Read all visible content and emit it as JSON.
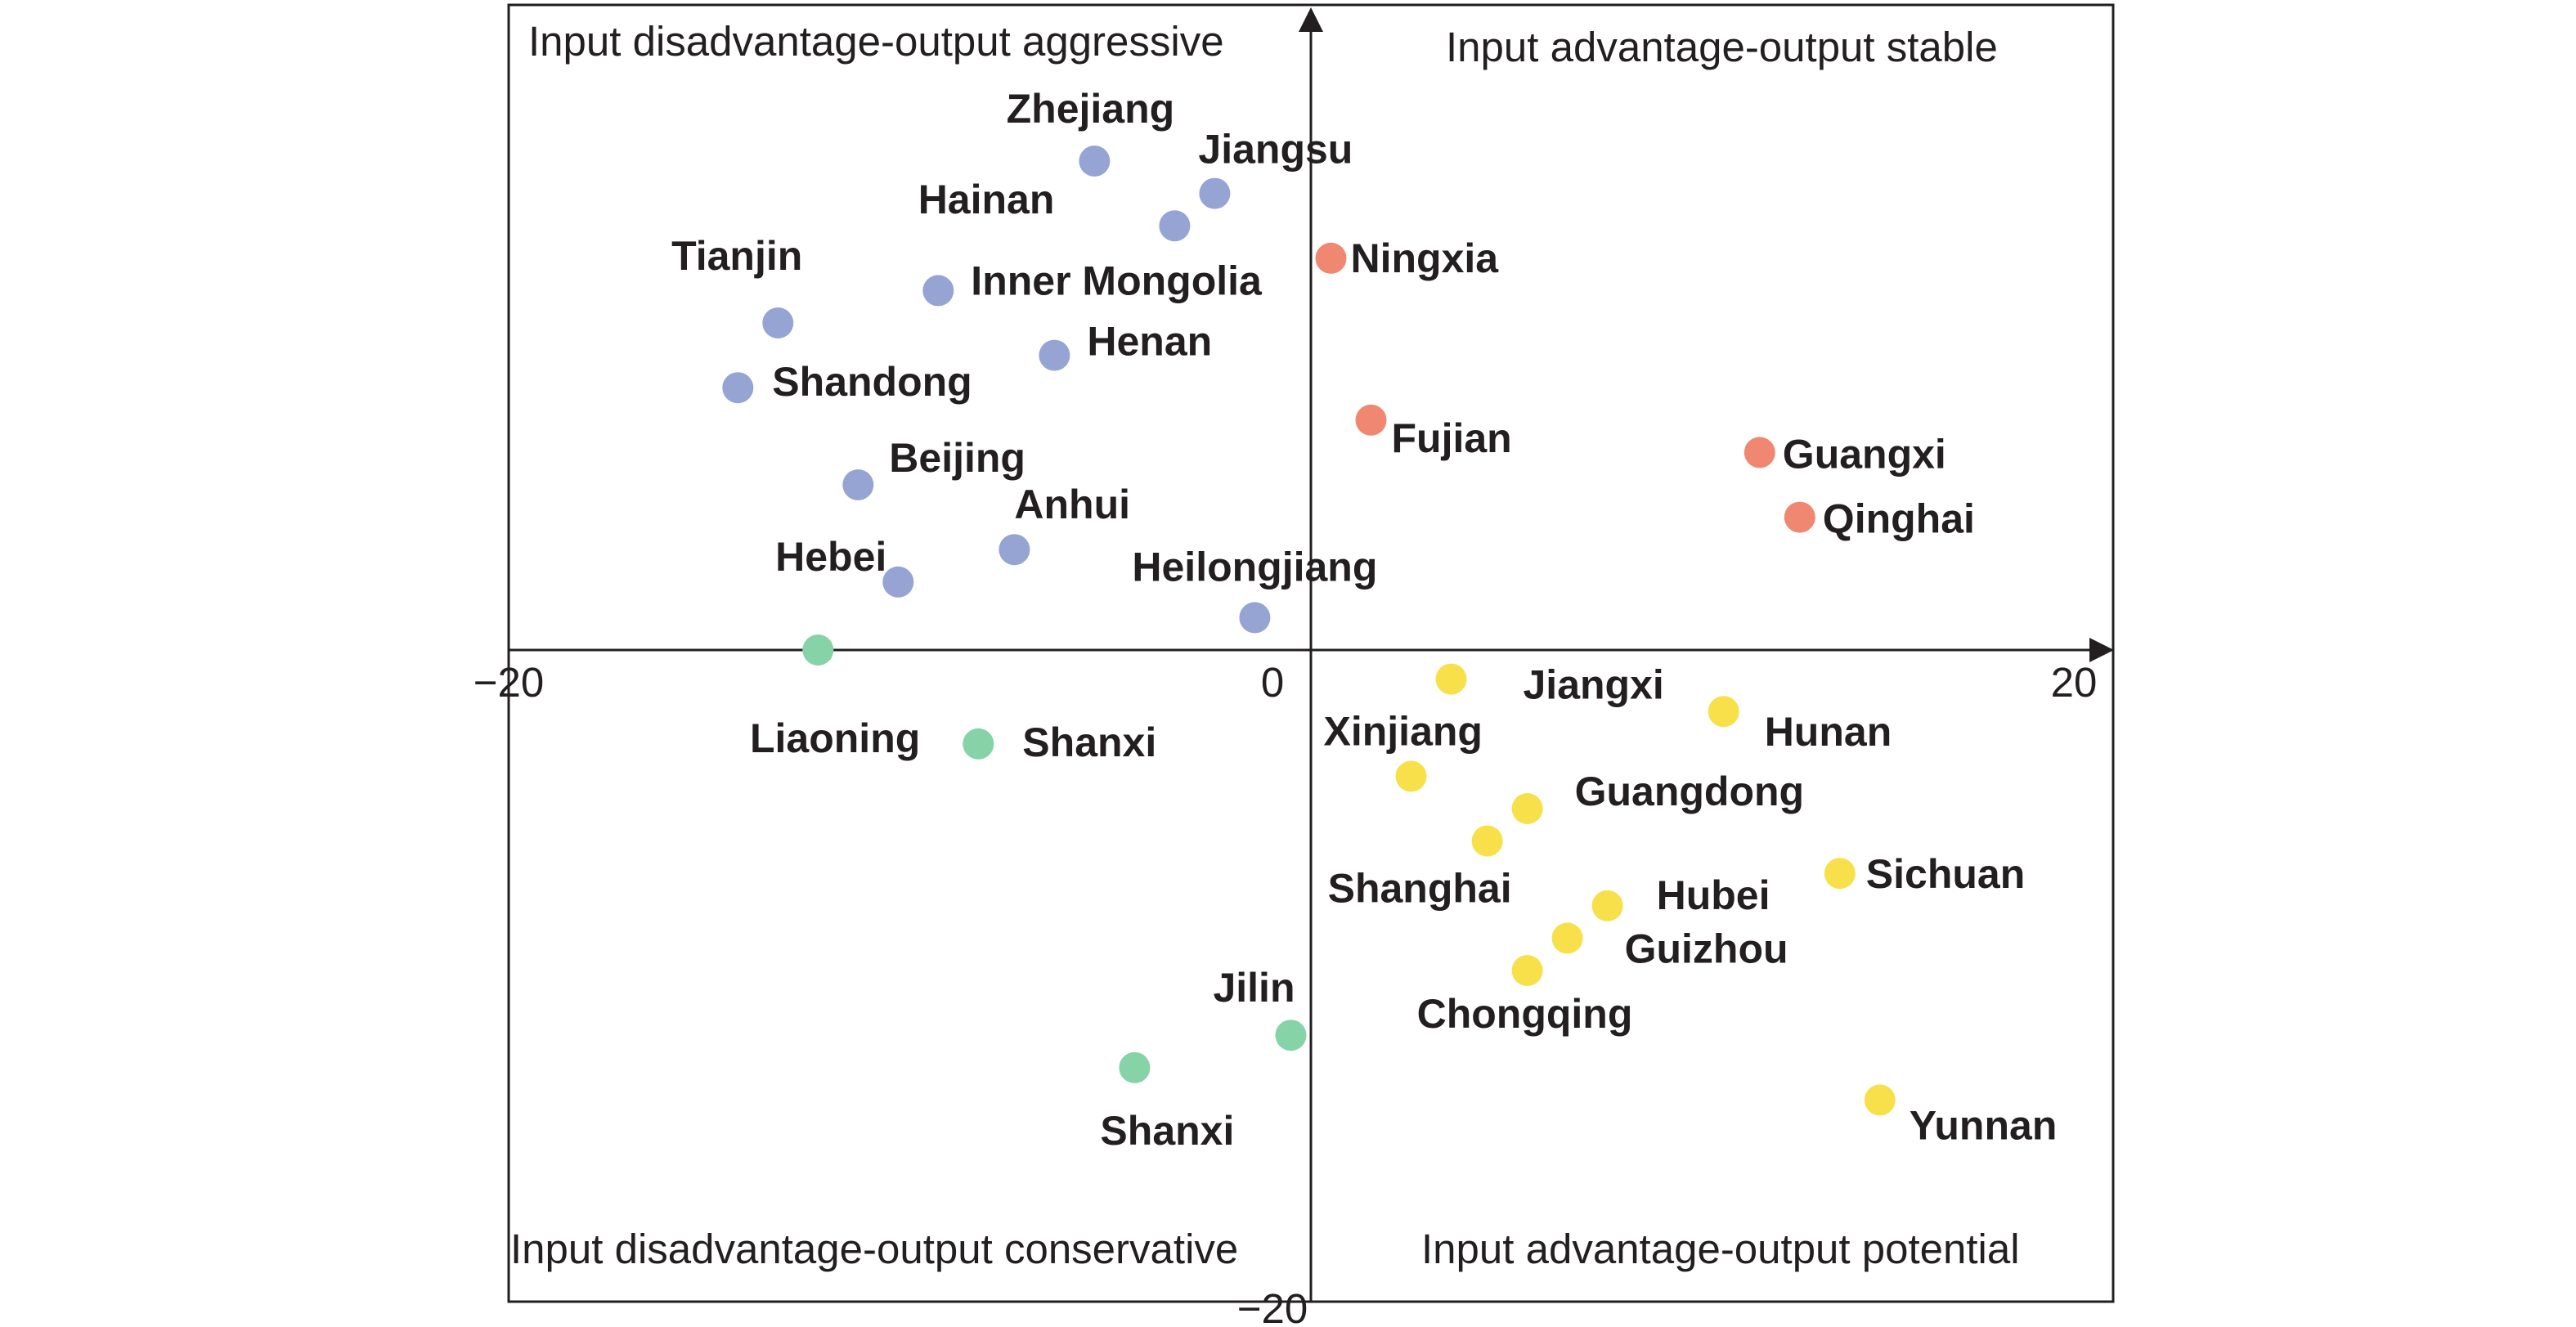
{
  "chart_data": {
    "type": "scatter",
    "title": "",
    "xlabel": "",
    "ylabel": "",
    "xlim": [
      -20,
      20
    ],
    "ylim": [
      -20,
      20
    ],
    "x_ticks": [
      {
        "value": -20,
        "label": "−20"
      },
      {
        "value": 0,
        "label": "0"
      },
      {
        "value": 20,
        "label": "20"
      }
    ],
    "y_ticks": [
      {
        "value": -20,
        "label": "−20"
      }
    ],
    "quadrants": {
      "top_left": "Input disadvantage-output aggressive",
      "top_right": "Input advantage-output stable",
      "bottom_left": "Input disadvantage-output conservative",
      "bottom_right": "Input advantage-output potential"
    },
    "colors": {
      "aggressive": "#95a4d2",
      "stable": "#f08770",
      "conservative": "#86d3a8",
      "potential": "#f8e04b"
    },
    "points": [
      {
        "name": "Zhejiang",
        "x": -5.4,
        "y": 15.1,
        "group": "aggressive"
      },
      {
        "name": "Jiangsu",
        "x": -2.4,
        "y": 14.1,
        "group": "aggressive"
      },
      {
        "name": "Hainan",
        "x": -3.4,
        "y": 13.1,
        "group": "aggressive"
      },
      {
        "name": "Tianjin",
        "x": -13.3,
        "y": 10.1,
        "group": "aggressive"
      },
      {
        "name": "Inner Mongolia",
        "x": -9.3,
        "y": 11.1,
        "group": "aggressive"
      },
      {
        "name": "Henan",
        "x": -6.4,
        "y": 9.1,
        "group": "aggressive"
      },
      {
        "name": "Shandong",
        "x": -14.3,
        "y": 8.1,
        "group": "aggressive"
      },
      {
        "name": "Beijing",
        "x": -11.3,
        "y": 5.1,
        "group": "aggressive"
      },
      {
        "name": "Anhui",
        "x": -7.4,
        "y": 3.1,
        "group": "aggressive"
      },
      {
        "name": "Hebei",
        "x": -10.3,
        "y": 2.1,
        "group": "aggressive"
      },
      {
        "name": "Heilongjiang",
        "x": -1.4,
        "y": 1.0,
        "group": "aggressive"
      },
      {
        "name": "Ningxia",
        "x": 0.5,
        "y": 12.1,
        "group": "stable"
      },
      {
        "name": "Fujian",
        "x": 1.5,
        "y": 7.1,
        "group": "stable"
      },
      {
        "name": "Guangxi",
        "x": 11.2,
        "y": 6.1,
        "group": "stable"
      },
      {
        "name": "Qinghai",
        "x": 12.2,
        "y": 4.1,
        "group": "stable"
      },
      {
        "name": "Liaoning",
        "x": -12.3,
        "y": 0.0,
        "group": "conservative"
      },
      {
        "name": "Shanxi",
        "x": -8.3,
        "y": -2.9,
        "group": "conservative"
      },
      {
        "name": "Jilin",
        "x": -0.5,
        "y": -11.9,
        "group": "conservative"
      },
      {
        "name": "Shanxi",
        "x": -4.4,
        "y": -12.9,
        "group": "conservative"
      },
      {
        "name": "Jiangxi",
        "x": 3.5,
        "y": -0.9,
        "group": "potential"
      },
      {
        "name": "Hunan",
        "x": 10.3,
        "y": -1.9,
        "group": "potential"
      },
      {
        "name": "Xinjiang",
        "x": 2.5,
        "y": -3.9,
        "group": "potential"
      },
      {
        "name": "Guangdong",
        "x": 5.4,
        "y": -4.9,
        "group": "potential"
      },
      {
        "name": "Shanghai",
        "x": 4.4,
        "y": -5.9,
        "group": "potential"
      },
      {
        "name": "Sichuan",
        "x": 13.2,
        "y": -6.9,
        "group": "potential"
      },
      {
        "name": "Hubei",
        "x": 7.4,
        "y": -7.9,
        "group": "potential"
      },
      {
        "name": "Guizhou",
        "x": 6.4,
        "y": -8.9,
        "group": "potential"
      },
      {
        "name": "Chongqing",
        "x": 5.4,
        "y": -9.9,
        "group": "potential"
      },
      {
        "name": "Yunnan",
        "x": 14.2,
        "y": -13.9,
        "group": "potential"
      }
    ]
  }
}
